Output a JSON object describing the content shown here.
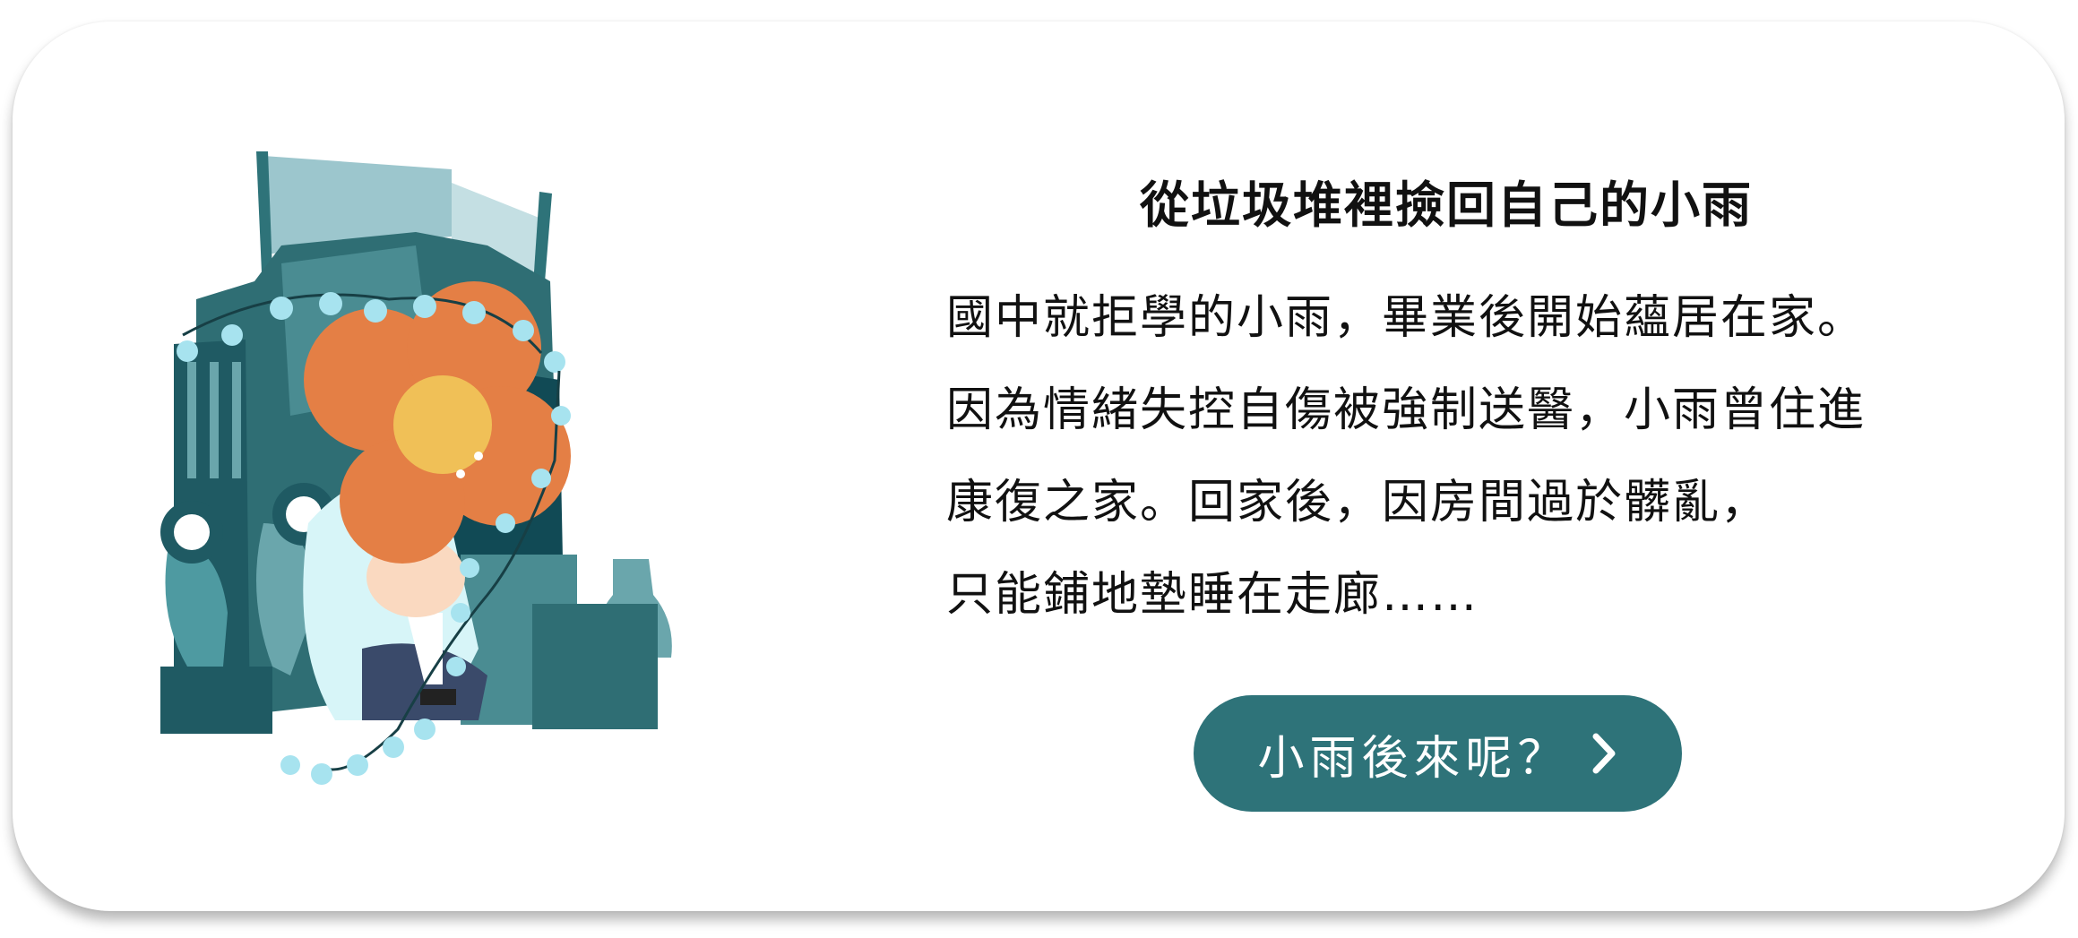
{
  "card": {
    "title": "從垃圾堆裡撿回自己的小雨",
    "lines": [
      "國中就拒學的小雨，畢業後開始蘊居在家。",
      "因為情緒失控自傷被強制送醫，小雨曾住進",
      "康復之家。回家後，因房間過於髒亂，",
      "只能鋪地墊睡在走廊……"
    ],
    "cta_label": "小雨後來呢？",
    "cta_icon": "chevron-right-icon",
    "illustration": "girl-hugging-knees-under-tent-illustration"
  },
  "colors": {
    "accent": "#2e7379",
    "hair": "#e47f45",
    "face": "#f0c057",
    "tent_dark": "#1f5a63",
    "tent_light": "#a9cfd6",
    "lights": "#a7e3ef"
  }
}
